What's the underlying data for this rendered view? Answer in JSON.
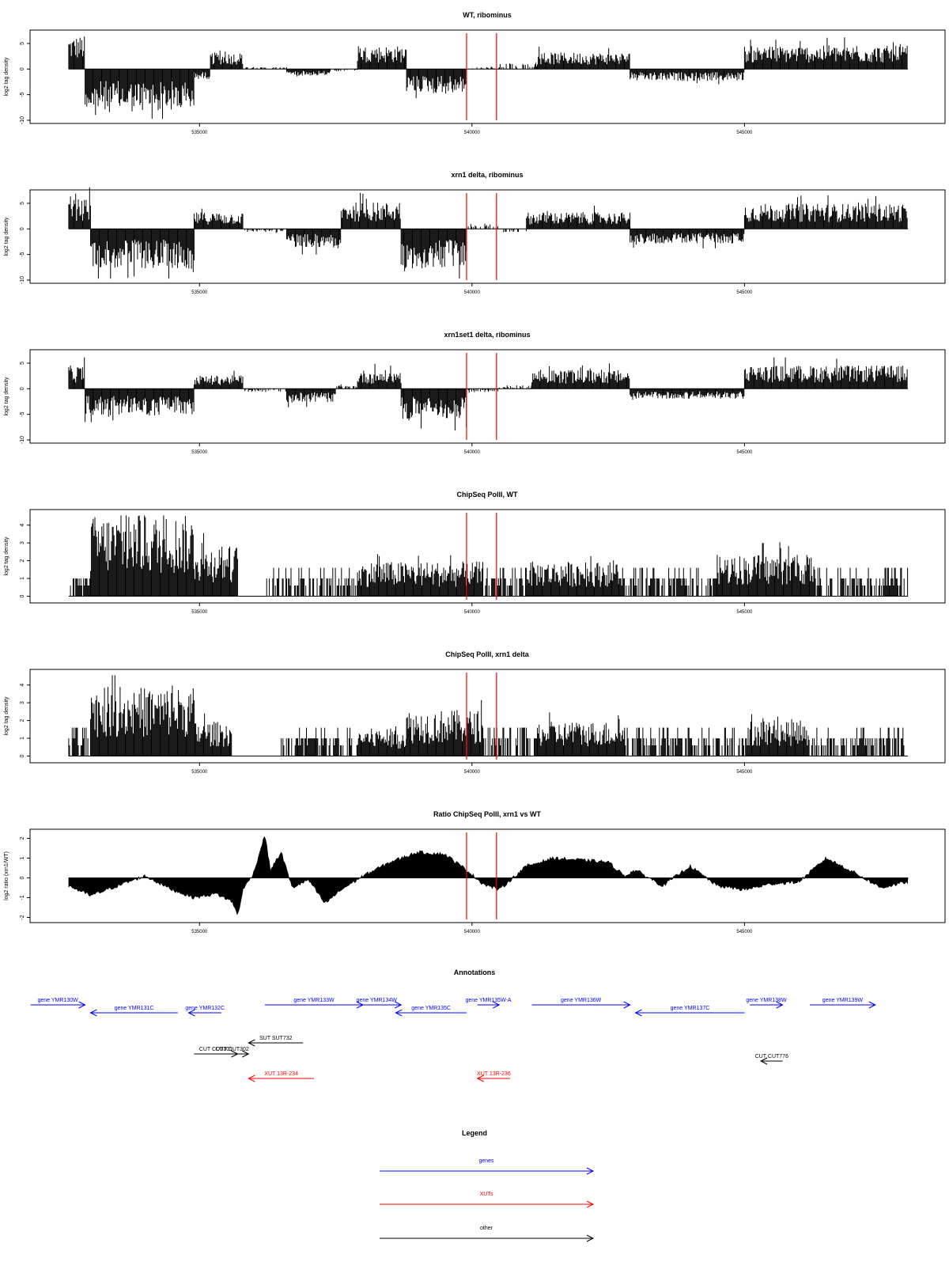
{
  "colors": {
    "trace": "#000000",
    "marker": "#ff0000",
    "gene": "#0000ff",
    "xut": "#ff0000",
    "other": "#000000"
  },
  "markers": [
    539900,
    540450
  ],
  "chart_data": [
    {
      "type": "bar",
      "title": "WT, ribominus",
      "ylabel": "log2 tag density",
      "xlim": [
        532500,
        548100
      ],
      "ylim": [
        -10,
        7
      ],
      "yticks": [
        -10,
        -5,
        0,
        5
      ],
      "xticks": [
        535000,
        540000,
        545000
      ],
      "segments": [
        {
          "from": 532600,
          "to": 532900,
          "sign": 1,
          "mag": 5
        },
        {
          "from": 532900,
          "to": 534900,
          "sign": -1,
          "mag": 6.5
        },
        {
          "from": 534900,
          "to": 535200,
          "sign": -1,
          "mag": 1.5
        },
        {
          "from": 535200,
          "to": 535800,
          "sign": 1,
          "mag": 2.5
        },
        {
          "from": 535800,
          "to": 536600,
          "sign": 1,
          "mag": 0.3
        },
        {
          "from": 536600,
          "to": 537400,
          "sign": -1,
          "mag": 1
        },
        {
          "from": 537400,
          "to": 537900,
          "sign": -1,
          "mag": 0.3
        },
        {
          "from": 537900,
          "to": 538800,
          "sign": 1,
          "mag": 3.5
        },
        {
          "from": 538800,
          "to": 539900,
          "sign": -1,
          "mag": 3.5
        },
        {
          "from": 539900,
          "to": 540500,
          "sign": 1,
          "mag": 0.3
        },
        {
          "from": 540500,
          "to": 541200,
          "sign": 1,
          "mag": 0.8
        },
        {
          "from": 541200,
          "to": 542900,
          "sign": 1,
          "mag": 2.5
        },
        {
          "from": 542900,
          "to": 545000,
          "sign": -1,
          "mag": 1.8
        },
        {
          "from": 545000,
          "to": 548000,
          "sign": 1,
          "mag": 3.5
        }
      ]
    },
    {
      "type": "bar",
      "title": "xrn1 delta, ribominus",
      "ylabel": "log2 tag density",
      "xlim": [
        532500,
        548100
      ],
      "ylim": [
        -10,
        7
      ],
      "yticks": [
        -10,
        -5,
        0,
        5
      ],
      "xticks": [
        535000,
        540000,
        545000
      ],
      "segments": [
        {
          "from": 532600,
          "to": 533000,
          "sign": 1,
          "mag": 4.5
        },
        {
          "from": 533000,
          "to": 534900,
          "sign": -1,
          "mag": 6
        },
        {
          "from": 534900,
          "to": 535800,
          "sign": 1,
          "mag": 2.5
        },
        {
          "from": 535800,
          "to": 536600,
          "sign": -1,
          "mag": 0.5
        },
        {
          "from": 536600,
          "to": 537600,
          "sign": -1,
          "mag": 2.8
        },
        {
          "from": 537600,
          "to": 538700,
          "sign": 1,
          "mag": 4
        },
        {
          "from": 538700,
          "to": 539900,
          "sign": -1,
          "mag": 6
        },
        {
          "from": 539900,
          "to": 540500,
          "sign": 1,
          "mag": 0.8
        },
        {
          "from": 540500,
          "to": 541000,
          "sign": -1,
          "mag": 0.5
        },
        {
          "from": 541000,
          "to": 542900,
          "sign": 1,
          "mag": 2.5
        },
        {
          "from": 542900,
          "to": 545000,
          "sign": -1,
          "mag": 2.2
        },
        {
          "from": 545000,
          "to": 548000,
          "sign": 1,
          "mag": 3.8
        }
      ]
    },
    {
      "type": "bar",
      "title": "xrn1set1 delta, ribominus",
      "ylabel": "log2 tag density",
      "xlim": [
        532500,
        548100
      ],
      "ylim": [
        -10,
        7
      ],
      "yticks": [
        -10,
        -5,
        0,
        5
      ],
      "xticks": [
        535000,
        540000,
        545000
      ],
      "segments": [
        {
          "from": 532600,
          "to": 532900,
          "sign": 1,
          "mag": 3.5
        },
        {
          "from": 532900,
          "to": 534900,
          "sign": -1,
          "mag": 4
        },
        {
          "from": 534900,
          "to": 535800,
          "sign": 1,
          "mag": 2
        },
        {
          "from": 535800,
          "to": 536600,
          "sign": -1,
          "mag": 0.5
        },
        {
          "from": 536600,
          "to": 537500,
          "sign": -1,
          "mag": 2
        },
        {
          "from": 537500,
          "to": 537900,
          "sign": 1,
          "mag": 0.5
        },
        {
          "from": 537900,
          "to": 538700,
          "sign": 1,
          "mag": 2.8
        },
        {
          "from": 538700,
          "to": 539900,
          "sign": -1,
          "mag": 4.5
        },
        {
          "from": 539900,
          "to": 540500,
          "sign": -1,
          "mag": 0.5
        },
        {
          "from": 540500,
          "to": 541100,
          "sign": 1,
          "mag": 0.5
        },
        {
          "from": 541100,
          "to": 542900,
          "sign": 1,
          "mag": 2.8
        },
        {
          "from": 542900,
          "to": 545000,
          "sign": -1,
          "mag": 1.5
        },
        {
          "from": 545000,
          "to": 548000,
          "sign": 1,
          "mag": 3.5
        }
      ]
    },
    {
      "type": "bar",
      "title": "ChipSeq PolII, WT",
      "ylabel": "log2 tag density",
      "xlim": [
        532500,
        548100
      ],
      "ylim": [
        -0.2,
        4.7
      ],
      "yticks": [
        0,
        1,
        2,
        3,
        4
      ],
      "xticks": [
        535000,
        540000,
        545000
      ],
      "segments": [
        {
          "from": 532600,
          "to": 533000,
          "sign": 1,
          "mag": 1
        },
        {
          "from": 533000,
          "to": 534900,
          "sign": 1,
          "mag": 3.5
        },
        {
          "from": 534900,
          "to": 535700,
          "sign": 1,
          "mag": 2.2
        },
        {
          "from": 535700,
          "to": 536200,
          "sign": 1,
          "mag": 0
        },
        {
          "from": 536200,
          "to": 537900,
          "sign": 1,
          "mag": 0.6
        },
        {
          "from": 537900,
          "to": 540200,
          "sign": 1,
          "mag": 1.5
        },
        {
          "from": 540200,
          "to": 541000,
          "sign": 1,
          "mag": 0.6
        },
        {
          "from": 541000,
          "to": 542700,
          "sign": 1,
          "mag": 1.5
        },
        {
          "from": 542700,
          "to": 544500,
          "sign": 1,
          "mag": 0.9
        },
        {
          "from": 544500,
          "to": 546300,
          "sign": 1,
          "mag": 1.8
        },
        {
          "from": 546300,
          "to": 548000,
          "sign": 1,
          "mag": 1
        }
      ]
    },
    {
      "type": "bar",
      "title": "ChipSeq PolII, xrn1 delta",
      "ylabel": "log2 tag density",
      "xlim": [
        532500,
        548100
      ],
      "ylim": [
        -0.2,
        4.7
      ],
      "yticks": [
        0,
        1,
        2,
        3,
        4
      ],
      "xticks": [
        535000,
        540000,
        545000
      ],
      "segments": [
        {
          "from": 532600,
          "to": 533000,
          "sign": 1,
          "mag": 0.6
        },
        {
          "from": 533000,
          "to": 534900,
          "sign": 1,
          "mag": 3
        },
        {
          "from": 534900,
          "to": 535600,
          "sign": 1,
          "mag": 1.5
        },
        {
          "from": 535600,
          "to": 536500,
          "sign": 1,
          "mag": 0
        },
        {
          "from": 536500,
          "to": 537900,
          "sign": 1,
          "mag": 0.6
        },
        {
          "from": 537900,
          "to": 538800,
          "sign": 1,
          "mag": 1.2
        },
        {
          "from": 538800,
          "to": 540200,
          "sign": 1,
          "mag": 2
        },
        {
          "from": 540200,
          "to": 541200,
          "sign": 1,
          "mag": 0.3
        },
        {
          "from": 541200,
          "to": 542800,
          "sign": 1,
          "mag": 1.5
        },
        {
          "from": 542800,
          "to": 545100,
          "sign": 1,
          "mag": 0.6
        },
        {
          "from": 545100,
          "to": 546200,
          "sign": 1,
          "mag": 1.6
        },
        {
          "from": 546200,
          "to": 548000,
          "sign": 1,
          "mag": 0.8
        }
      ]
    },
    {
      "type": "area",
      "title": "Ratio ChipSeq PolII, xrn1 vs WT",
      "ylabel": "log2 ratio (xrn1/WT)",
      "xlim": [
        532500,
        548100
      ],
      "ylim": [
        -2.1,
        2.3
      ],
      "yticks": [
        -2,
        -1,
        0,
        1,
        2
      ],
      "xticks": [
        535000,
        540000,
        545000
      ],
      "x": [
        532600,
        533000,
        533500,
        534000,
        534500,
        534900,
        535300,
        535600,
        535700,
        535800,
        536000,
        536200,
        536300,
        536500,
        536700,
        537000,
        537300,
        537600,
        538000,
        538500,
        539000,
        539500,
        539900,
        540200,
        540500,
        541000,
        541500,
        542000,
        542500,
        542800,
        543000,
        543500,
        544000,
        544500,
        545000,
        545500,
        546000,
        546500,
        547000,
        547500,
        548000
      ],
      "y": [
        -0.4,
        -0.9,
        -0.4,
        0.1,
        -0.6,
        -1.0,
        -0.8,
        -1.2,
        -1.9,
        -0.6,
        0.3,
        2.2,
        0.4,
        1.3,
        -0.5,
        -0.1,
        -1.3,
        -0.6,
        0.1,
        0.8,
        1.3,
        1.2,
        0.4,
        -0.3,
        -0.6,
        0.6,
        1.0,
        0.9,
        0.8,
        0.1,
        0.4,
        -0.4,
        0.6,
        -0.4,
        -0.6,
        -0.3,
        -0.2,
        1.0,
        0.3,
        -0.5,
        -0.2
      ]
    }
  ],
  "annotations": {
    "title": "Annotations",
    "genes": [
      {
        "label": "gene YMR130W",
        "from": 531900,
        "to": 532900,
        "row": 0
      },
      {
        "label": "gene YMR131C",
        "from": 533000,
        "to": 534600,
        "row": 1
      },
      {
        "label": "gene YMR132C",
        "from": 534800,
        "to": 535400,
        "row": 1
      },
      {
        "label": "gene YMR133W",
        "from": 536200,
        "to": 538000,
        "row": 0
      },
      {
        "label": "gene YMR134W",
        "from": 537800,
        "to": 538700,
        "row": 0
      },
      {
        "label": "gene YMR135C",
        "from": 538600,
        "to": 539900,
        "row": 1
      },
      {
        "label": "gene YMR135W-A",
        "from": 540100,
        "to": 540500,
        "row": 0
      },
      {
        "label": "gene YMR136W",
        "from": 541100,
        "to": 542900,
        "row": 0
      },
      {
        "label": "gene YMR137C",
        "from": 543000,
        "to": 545000,
        "row": 1
      },
      {
        "label": "gene YMR138W",
        "from": 545100,
        "to": 545700,
        "row": 0
      },
      {
        "label": "gene YMR139W",
        "from": 546200,
        "to": 547400,
        "row": 0
      }
    ],
    "other": [
      {
        "label": "SUT SUT732",
        "from": 535900,
        "to": 536900,
        "y_row": 0
      },
      {
        "label": "CUT CUT301",
        "from": 534900,
        "to": 535700,
        "y_row": 1
      },
      {
        "label": "CUT CUT302",
        "from": 535300,
        "to": 535900,
        "y_row": 1
      },
      {
        "label": "CUT CUT776",
        "from": 545300,
        "to": 545700,
        "y_row": 2
      }
    ],
    "xuts": [
      {
        "label": "XUT 13R-234",
        "from": 535900,
        "to": 537100
      },
      {
        "label": "XUT 13R-236",
        "from": 540100,
        "to": 540700
      }
    ]
  },
  "legend": {
    "title": "Legend",
    "items": [
      {
        "label": "genes",
        "color": "#0000ff"
      },
      {
        "label": "XUTs",
        "color": "#ff0000"
      },
      {
        "label": "other",
        "color": "#000000"
      }
    ]
  }
}
